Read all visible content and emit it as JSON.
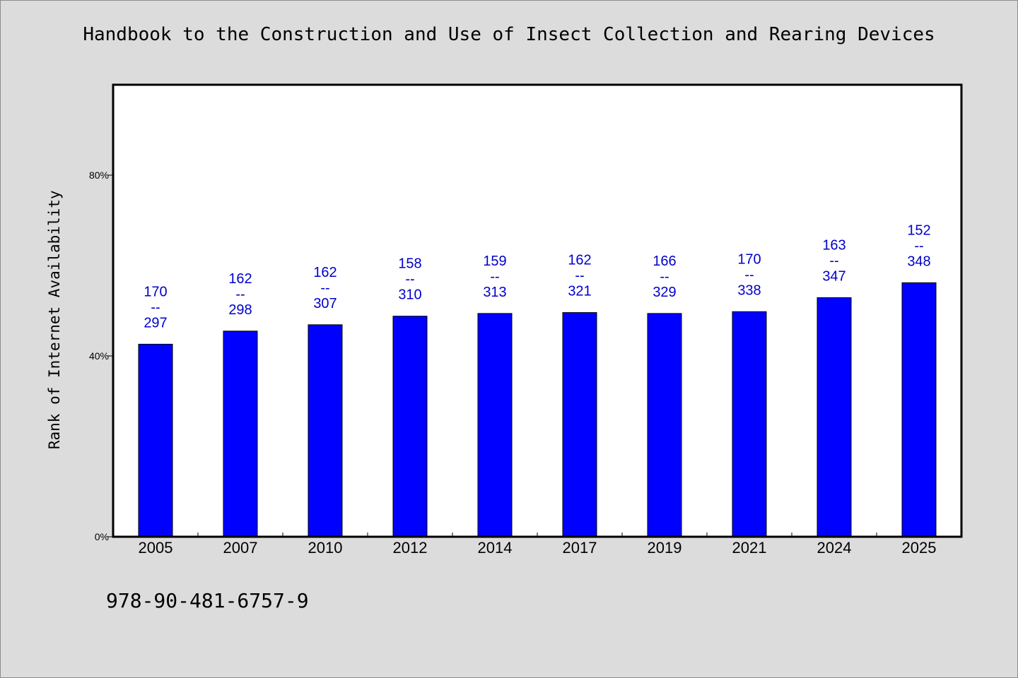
{
  "chart_data": {
    "type": "bar",
    "title": "Handbook to the Construction and Use of Insect Collection and Rearing Devices",
    "xlabel": "",
    "ylabel": "Rank of Internet Availability",
    "categories": [
      "2005",
      "2007",
      "2010",
      "2012",
      "2014",
      "2017",
      "2019",
      "2021",
      "2024",
      "2025"
    ],
    "series": [
      {
        "values": [
          42.6,
          45.5,
          46.9,
          48.8,
          49.4,
          49.6,
          49.4,
          49.8,
          52.9,
          56.2
        ],
        "color": "#0000ff"
      }
    ],
    "data_labels": [
      [
        "170",
        "--",
        "297"
      ],
      [
        "162",
        "--",
        "298"
      ],
      [
        "162",
        "--",
        "307"
      ],
      [
        "158",
        "--",
        "310"
      ],
      [
        "159",
        "--",
        "313"
      ],
      [
        "162",
        "--",
        "321"
      ],
      [
        "166",
        "--",
        "329"
      ],
      [
        "170",
        "--",
        "338"
      ],
      [
        "163",
        "--",
        "347"
      ],
      [
        "152",
        "--",
        "348"
      ]
    ],
    "yticks": [
      0,
      40,
      80
    ],
    "ytick_labels": [
      "0%",
      "40%",
      "80%"
    ],
    "ylim": [
      0,
      100
    ],
    "grid": false,
    "label_color": "#0000cc",
    "bar_color": "#0000ff"
  },
  "footer": {
    "isbn": "978-90-481-6757-9"
  },
  "colors": {
    "background": "#dcdcdc",
    "plot_background": "#ffffff"
  }
}
